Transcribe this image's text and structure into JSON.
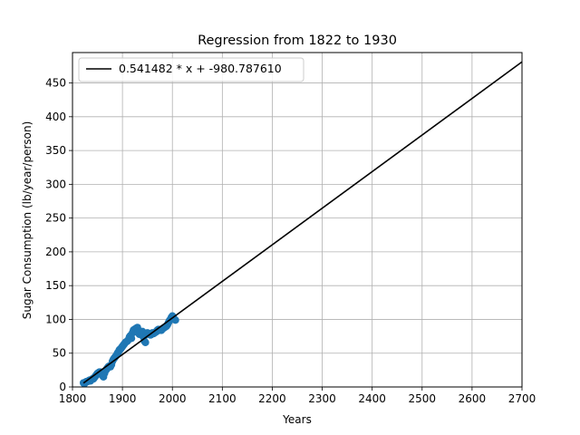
{
  "chart_data": {
    "type": "scatter",
    "title": "Regression from 1822 to 1930",
    "xlabel": "Years",
    "ylabel": "Sugar Consumption (lb/year/person)",
    "xlim": [
      1800,
      2700
    ],
    "ylim": [
      0,
      495
    ],
    "x_ticks": [
      1800,
      1900,
      2000,
      2100,
      2200,
      2300,
      2400,
      2500,
      2600,
      2700
    ],
    "y_ticks": [
      0,
      50,
      100,
      150,
      200,
      250,
      300,
      350,
      400,
      450
    ],
    "grid": true,
    "legend": {
      "placement": "top-left",
      "entries": [
        "0.541482 * x + -980.787610"
      ]
    },
    "regression": {
      "slope": 0.541482,
      "intercept": -980.78761,
      "x_range": [
        1822,
        2700
      ],
      "color": "#000000"
    },
    "series": [
      {
        "color": "#1f77b4",
        "points": [
          [
            1822,
            6
          ],
          [
            1824,
            5
          ],
          [
            1826,
            7
          ],
          [
            1828,
            8
          ],
          [
            1830,
            8
          ],
          [
            1832,
            9
          ],
          [
            1834,
            10
          ],
          [
            1836,
            9
          ],
          [
            1838,
            11
          ],
          [
            1840,
            12
          ],
          [
            1842,
            12
          ],
          [
            1844,
            14
          ],
          [
            1846,
            16
          ],
          [
            1848,
            18
          ],
          [
            1850,
            20
          ],
          [
            1852,
            21
          ],
          [
            1854,
            22
          ],
          [
            1856,
            22
          ],
          [
            1858,
            19
          ],
          [
            1860,
            17
          ],
          [
            1862,
            15
          ],
          [
            1864,
            20
          ],
          [
            1866,
            24
          ],
          [
            1868,
            26
          ],
          [
            1870,
            28
          ],
          [
            1872,
            30
          ],
          [
            1874,
            31
          ],
          [
            1876,
            30
          ],
          [
            1878,
            33
          ],
          [
            1880,
            38
          ],
          [
            1882,
            41
          ],
          [
            1884,
            43
          ],
          [
            1886,
            45
          ],
          [
            1888,
            47
          ],
          [
            1890,
            50
          ],
          [
            1892,
            52
          ],
          [
            1894,
            55
          ],
          [
            1896,
            56
          ],
          [
            1898,
            58
          ],
          [
            1900,
            60
          ],
          [
            1902,
            62
          ],
          [
            1904,
            64
          ],
          [
            1906,
            66
          ],
          [
            1908,
            67
          ],
          [
            1910,
            68
          ],
          [
            1912,
            70
          ],
          [
            1914,
            74
          ],
          [
            1916,
            76
          ],
          [
            1918,
            72
          ],
          [
            1920,
            80
          ],
          [
            1922,
            84
          ],
          [
            1924,
            85
          ],
          [
            1926,
            86
          ],
          [
            1928,
            87
          ],
          [
            1930,
            88
          ],
          [
            1932,
            80
          ],
          [
            1934,
            78
          ],
          [
            1936,
            82
          ],
          [
            1938,
            80
          ],
          [
            1940,
            82
          ],
          [
            1942,
            74
          ],
          [
            1944,
            68
          ],
          [
            1946,
            66
          ],
          [
            1948,
            78
          ],
          [
            1950,
            80
          ],
          [
            1952,
            79
          ],
          [
            1954,
            78
          ],
          [
            1956,
            77
          ],
          [
            1958,
            78
          ],
          [
            1960,
            80
          ],
          [
            1962,
            79
          ],
          [
            1964,
            80
          ],
          [
            1966,
            81
          ],
          [
            1968,
            82
          ],
          [
            1970,
            84
          ],
          [
            1972,
            85
          ],
          [
            1974,
            84
          ],
          [
            1976,
            85
          ],
          [
            1978,
            84
          ],
          [
            1980,
            86
          ],
          [
            1982,
            87
          ],
          [
            1984,
            88
          ],
          [
            1986,
            89
          ],
          [
            1988,
            90
          ],
          [
            1990,
            92
          ],
          [
            1992,
            95
          ],
          [
            1994,
            98
          ],
          [
            1996,
            100
          ],
          [
            1998,
            103
          ],
          [
            2000,
            105
          ],
          [
            2002,
            103
          ],
          [
            2004,
            100
          ],
          [
            2006,
            99
          ]
        ]
      }
    ]
  }
}
